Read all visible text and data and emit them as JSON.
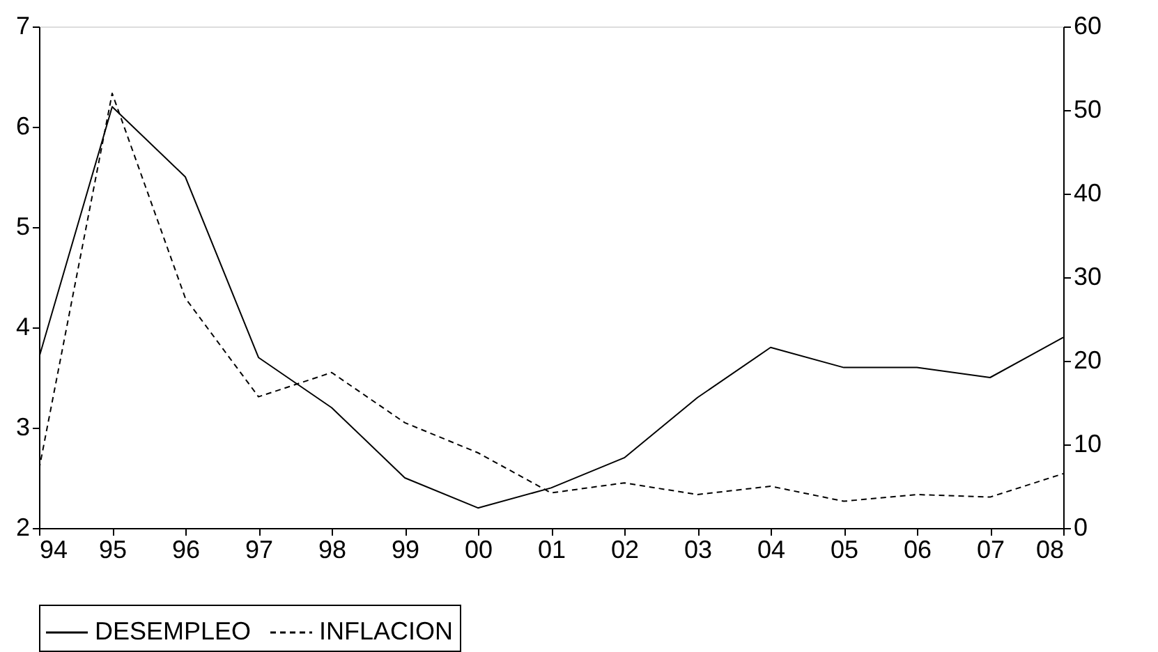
{
  "chart_data": {
    "type": "line",
    "categories": [
      "94",
      "95",
      "96",
      "97",
      "98",
      "99",
      "00",
      "01",
      "02",
      "03",
      "04",
      "05",
      "06",
      "07",
      "08"
    ],
    "series": [
      {
        "name": "DESEMPLEO",
        "color": "#000000",
        "line_style": "solid",
        "values": [
          3.7,
          6.2,
          5.5,
          3.7,
          3.2,
          2.5,
          2.2,
          2.4,
          2.7,
          3.3,
          3.8,
          3.6,
          3.6,
          3.5,
          3.9
        ]
      },
      {
        "name": "INFLACION",
        "color": "#000000",
        "line_style": "dashed",
        "axis": "y2",
        "values": [
          7,
          52,
          27.5,
          15.7,
          18.6,
          12.6,
          9,
          4.2,
          5.4,
          4,
          5,
          3.2,
          4,
          3.7,
          6.5
        ]
      }
    ],
    "ylim": [
      2,
      7
    ],
    "yticks": [
      2,
      3,
      4,
      5,
      6,
      7
    ],
    "y2lim": [
      0,
      60
    ],
    "y2ticks": [
      0,
      10,
      20,
      30,
      40,
      50,
      60
    ],
    "grid": false,
    "legend": "bottom",
    "marker": "none"
  }
}
